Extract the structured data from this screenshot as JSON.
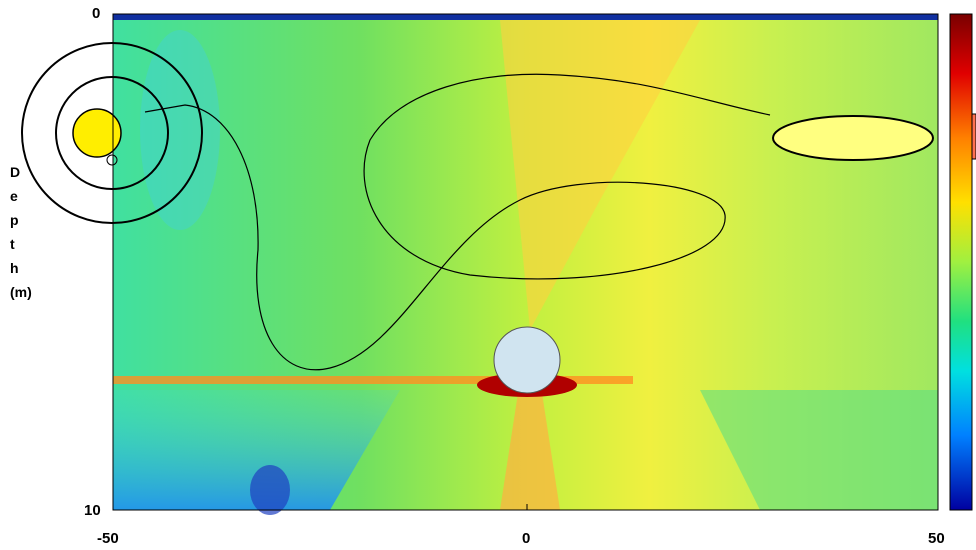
{
  "plot": {
    "y_axis": {
      "label": "Depth (m)",
      "ticks": [
        "0",
        "10"
      ]
    },
    "x_axis": {
      "ticks": [
        "-50",
        "0",
        "50"
      ]
    }
  }
}
